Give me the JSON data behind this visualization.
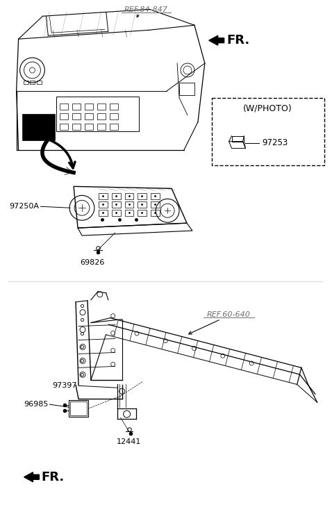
{
  "bg_color": "#ffffff",
  "line_color": "#000000",
  "gray_color": "#6e6e6e",
  "labels": {
    "REF_84_847": "REF.84-847",
    "FR_top": "FR.",
    "97250A": "97250A",
    "69826": "69826",
    "W_PHOTO": "(W/PHOTO)",
    "97253": "97253",
    "REF_60_640": "REF.60-640",
    "97397": "97397",
    "96985": "96985",
    "12441": "12441",
    "FR_bottom": "FR."
  }
}
